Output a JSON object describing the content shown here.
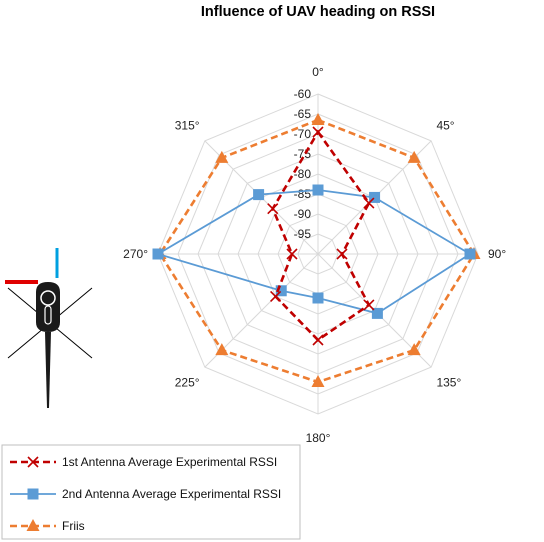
{
  "chart_data": {
    "type": "radar",
    "title": "Influence of UAV heading on RSSI",
    "axes": [
      "0°",
      "45°",
      "90°",
      "135°",
      "180°",
      "225°",
      "270°",
      "315°"
    ],
    "r_ticks": [
      -60,
      -65,
      -70,
      -75,
      -80,
      -85,
      -90,
      -95
    ],
    "rlim": [
      -100,
      -60
    ],
    "grid": true,
    "legend_position": "bottom-left",
    "series": [
      {
        "name": "1st Antenna Average Experimental RSSI",
        "values": [
          -69.5,
          -82,
          -94,
          -82,
          -78.5,
          -85,
          -93.5,
          -84
        ],
        "color": "#c00000",
        "marker": "x",
        "line": "dashed"
      },
      {
        "name": "2nd Antenna Average Experimental RSSI",
        "values": [
          -84,
          -80,
          -62,
          -79,
          -89,
          -87,
          -60,
          -79
        ],
        "color": "#5b9bd5",
        "marker": "square",
        "line": "solid"
      },
      {
        "name": "Friis",
        "values": [
          -66.5,
          -66,
          -61,
          -66,
          -68,
          -66,
          -60.5,
          -66
        ],
        "color": "#ed7d31",
        "marker": "triangle",
        "line": "dashed"
      }
    ]
  },
  "inset": {
    "icon": "uav-top-view-icon",
    "red_bar_color": "#e00000",
    "blue_bar_color": "#00a0e0"
  }
}
